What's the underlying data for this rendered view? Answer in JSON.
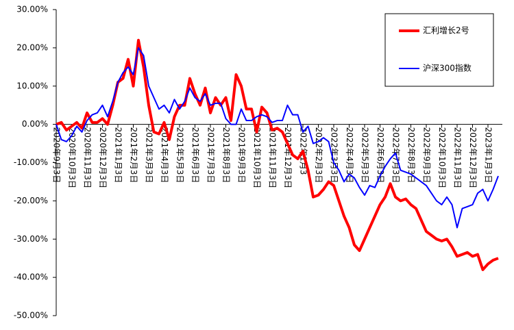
{
  "chart_data": {
    "type": "line",
    "categories": [
      "2020年9月3日",
      null,
      null,
      "2020年10月3日",
      null,
      null,
      "2020年11月3日",
      null,
      null,
      "2020年12月3日",
      null,
      null,
      "2021年1月3日",
      null,
      null,
      "2021年2月3日",
      null,
      null,
      "2021年3月3日",
      null,
      null,
      "2021年4月3日",
      null,
      null,
      "2021年5月3日",
      null,
      null,
      "2021年6月3日",
      null,
      null,
      "2021年7月3日",
      null,
      null,
      "2021年8月3日",
      null,
      null,
      "2021年9月3日",
      null,
      null,
      "2021年10月3日",
      null,
      null,
      "2021年11月3日",
      null,
      null,
      "2021年12月3日",
      null,
      null,
      "2022年1月3",
      null,
      null,
      "2022年2月3日",
      null,
      null,
      "2022年3月3日",
      null,
      null,
      "2022年4月3日",
      null,
      null,
      "2022年5月3日",
      null,
      null,
      "2022年6月3日",
      null,
      null,
      "2022年7月3日",
      null,
      null,
      "2022年8月3日",
      null,
      null,
      "2022年9月3日",
      null,
      null,
      "2022年10月3日",
      null,
      null,
      "2022年11月3日",
      null,
      null,
      "2022年12月3日",
      null,
      null,
      "2023年1月3日",
      null,
      null
    ],
    "series": [
      {
        "name": "汇利增长2号",
        "color": "#ff0000",
        "values": [
          0,
          0.5,
          -1.5,
          -0.5,
          0.5,
          -1,
          3,
          0.5,
          0.5,
          1.5,
          0,
          5,
          11,
          12,
          17,
          10,
          22,
          15,
          5,
          -2,
          -2.5,
          0.5,
          -4,
          2,
          5,
          5,
          12,
          8,
          5,
          9.5,
          3,
          7,
          5,
          7,
          1,
          13,
          10,
          4,
          4,
          -2,
          4.5,
          3,
          -1.5,
          -1,
          -2,
          -5,
          -8,
          -9,
          -7,
          -12,
          -19,
          -18.5,
          -17,
          -15,
          -16,
          -20,
          -24,
          -27,
          -31.5,
          -33,
          -30,
          -27,
          -24,
          -21,
          -19,
          -15.5,
          -19,
          -20,
          -19.5,
          -21,
          -22,
          -25,
          -28,
          -29,
          -30,
          -30.5,
          -30,
          -32,
          -34.5,
          -34,
          -33.5,
          -34.5,
          -34,
          -38,
          -36.5,
          -35.5,
          -35
        ]
      },
      {
        "name": "沪深300指数",
        "color": "#0000ff",
        "values": [
          0,
          -4,
          -4.5,
          -3,
          -0.5,
          -2,
          1,
          2.5,
          3,
          5,
          2,
          6,
          11,
          13.5,
          15,
          13,
          20,
          18,
          10,
          7,
          4,
          5,
          3,
          6.5,
          4,
          6,
          9.5,
          7,
          6,
          8,
          5,
          5.5,
          5.5,
          1.5,
          0,
          0,
          4,
          1,
          1,
          2,
          2.5,
          2,
          0.5,
          1,
          1,
          5,
          2.5,
          2.5,
          -2,
          -0.5,
          -5,
          -4.5,
          -3.5,
          -4.5,
          -10,
          -12,
          -15,
          -13,
          -14,
          -16.5,
          -18.5,
          -16,
          -16.5,
          -13.5,
          -11,
          -9,
          -7.5,
          -12,
          -12.5,
          -13,
          -14,
          -15,
          -16,
          -18,
          -20,
          -21,
          -19,
          -21,
          -27,
          -22,
          -21.5,
          -21,
          -18,
          -17,
          -20,
          -17,
          -13.5
        ]
      }
    ],
    "ylim": [
      -50,
      30
    ],
    "yticks": [
      {
        "value": -50,
        "label": "-50.00%"
      },
      {
        "value": -40,
        "label": "-40.00%"
      },
      {
        "value": -30,
        "label": "-30.00%"
      },
      {
        "value": -20,
        "label": "-20.00%"
      },
      {
        "value": -10,
        "label": "-10.00%"
      },
      {
        "value": 0,
        "label": "0.00%"
      },
      {
        "value": 10,
        "label": "10.00%"
      },
      {
        "value": 20,
        "label": "20.00%"
      },
      {
        "value": 30,
        "label": "30.00%"
      }
    ],
    "legend": "upper right"
  }
}
